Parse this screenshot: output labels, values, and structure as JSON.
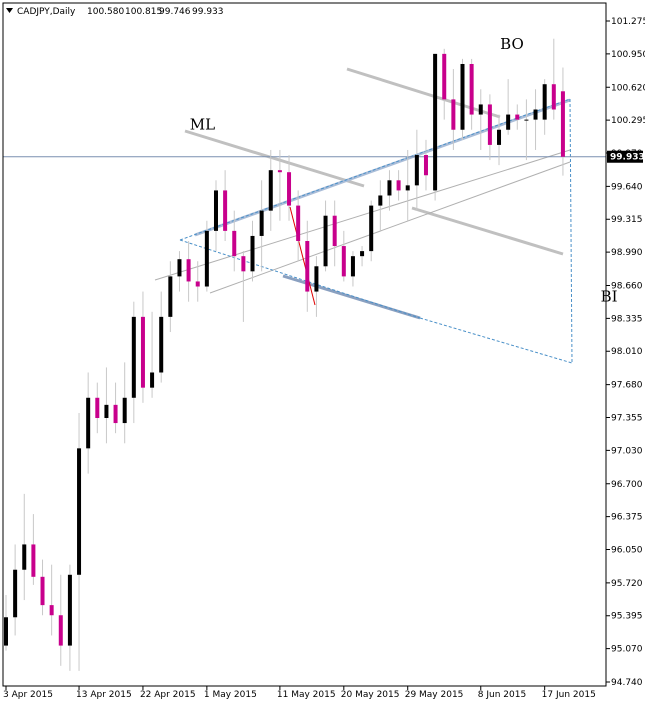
{
  "header": {
    "symbol": "CADJPY,Daily",
    "open": "100.580",
    "high": "100.815",
    "low": "99.746",
    "close": "99.933"
  },
  "chart_data": {
    "type": "candlestick",
    "symbol": "CADJPY",
    "timeframe": "Daily",
    "ylim": [
      94.7,
      101.37
    ],
    "y_ticks": [
      "101.275",
      "100.950",
      "100.620",
      "100.295",
      "99.970",
      "99.640",
      "99.315",
      "98.990",
      "98.660",
      "98.335",
      "98.010",
      "97.680",
      "97.355",
      "97.030",
      "96.700",
      "96.375",
      "96.050",
      "95.720",
      "95.395",
      "95.070",
      "94.740"
    ],
    "x_ticks": [
      {
        "label": "3 Apr 2015",
        "index": 0
      },
      {
        "label": "13 Apr 2015",
        "index": 8
      },
      {
        "label": "22 Apr 2015",
        "index": 15
      },
      {
        "label": "1 May 2015",
        "index": 22
      },
      {
        "label": "11 May 2015",
        "index": 30
      },
      {
        "label": "20 May 2015",
        "index": 37
      },
      {
        "label": "29 May 2015",
        "index": 44
      },
      {
        "label": "8 Jun 2015",
        "index": 52
      },
      {
        "label": "17 Jun 2015",
        "index": 59
      }
    ],
    "current_price": "99.933",
    "colors": {
      "bull": "#000000",
      "bear": "#c8008c",
      "wick": "#c8c8c8",
      "median_line": "#c0c0c0",
      "channel": "#b0b0b0",
      "dashed": "#4a90c8",
      "red_line": "#e00000",
      "price_line": "#6a7fa0",
      "price_label_bg": "#000000"
    },
    "candles": [
      {
        "o": 95.1,
        "h": 95.6,
        "l": 95.05,
        "c": 95.38
      },
      {
        "o": 95.38,
        "h": 96.1,
        "l": 95.2,
        "c": 95.85
      },
      {
        "o": 95.85,
        "h": 96.6,
        "l": 95.55,
        "c": 96.1
      },
      {
        "o": 96.1,
        "h": 96.4,
        "l": 95.7,
        "c": 95.78
      },
      {
        "o": 95.78,
        "h": 95.95,
        "l": 95.4,
        "c": 95.5
      },
      {
        "o": 95.5,
        "h": 95.9,
        "l": 95.2,
        "c": 95.4
      },
      {
        "o": 95.4,
        "h": 95.8,
        "l": 94.9,
        "c": 95.1
      },
      {
        "o": 95.1,
        "h": 95.9,
        "l": 94.85,
        "c": 95.8
      },
      {
        "o": 95.8,
        "h": 97.4,
        "l": 94.85,
        "c": 97.05
      },
      {
        "o": 97.05,
        "h": 97.8,
        "l": 96.8,
        "c": 97.55
      },
      {
        "o": 97.55,
        "h": 97.7,
        "l": 97.2,
        "c": 97.35
      },
      {
        "o": 97.35,
        "h": 97.85,
        "l": 97.1,
        "c": 97.48
      },
      {
        "o": 97.48,
        "h": 97.7,
        "l": 97.2,
        "c": 97.3
      },
      {
        "o": 97.3,
        "h": 97.9,
        "l": 97.1,
        "c": 97.55
      },
      {
        "o": 97.55,
        "h": 98.5,
        "l": 97.3,
        "c": 98.35
      },
      {
        "o": 98.35,
        "h": 98.6,
        "l": 97.5,
        "c": 97.65
      },
      {
        "o": 97.65,
        "h": 98.4,
        "l": 97.55,
        "c": 97.8
      },
      {
        "o": 97.8,
        "h": 98.6,
        "l": 97.7,
        "c": 98.35
      },
      {
        "o": 98.35,
        "h": 98.9,
        "l": 98.2,
        "c": 98.75
      },
      {
        "o": 98.75,
        "h": 99.0,
        "l": 98.6,
        "c": 98.92
      },
      {
        "o": 98.92,
        "h": 99.1,
        "l": 98.5,
        "c": 98.7
      },
      {
        "o": 98.7,
        "h": 98.9,
        "l": 98.5,
        "c": 98.65
      },
      {
        "o": 98.65,
        "h": 99.3,
        "l": 98.6,
        "c": 99.2
      },
      {
        "o": 99.2,
        "h": 99.7,
        "l": 99.0,
        "c": 99.6
      },
      {
        "o": 99.6,
        "h": 99.8,
        "l": 99.1,
        "c": 99.2
      },
      {
        "o": 99.2,
        "h": 99.4,
        "l": 98.8,
        "c": 98.95
      },
      {
        "o": 98.95,
        "h": 99.0,
        "l": 98.3,
        "c": 98.8
      },
      {
        "o": 98.8,
        "h": 99.3,
        "l": 98.7,
        "c": 99.15
      },
      {
        "o": 99.15,
        "h": 99.7,
        "l": 98.8,
        "c": 99.4
      },
      {
        "o": 99.4,
        "h": 100.0,
        "l": 99.2,
        "c": 99.8
      },
      {
        "o": 99.8,
        "h": 100.0,
        "l": 99.3,
        "c": 99.78
      },
      {
        "o": 99.78,
        "h": 99.95,
        "l": 99.3,
        "c": 99.45
      },
      {
        "o": 99.45,
        "h": 99.6,
        "l": 98.9,
        "c": 99.1
      },
      {
        "o": 99.1,
        "h": 99.3,
        "l": 98.4,
        "c": 98.6
      },
      {
        "o": 98.6,
        "h": 98.95,
        "l": 98.35,
        "c": 98.85
      },
      {
        "o": 98.85,
        "h": 99.5,
        "l": 98.8,
        "c": 99.35
      },
      {
        "o": 99.35,
        "h": 99.5,
        "l": 98.85,
        "c": 99.05
      },
      {
        "o": 99.05,
        "h": 99.2,
        "l": 98.7,
        "c": 98.75
      },
      {
        "o": 98.75,
        "h": 99.0,
        "l": 98.65,
        "c": 98.95
      },
      {
        "o": 98.95,
        "h": 99.05,
        "l": 98.85,
        "c": 99.0
      },
      {
        "o": 99.0,
        "h": 99.5,
        "l": 98.9,
        "c": 99.45
      },
      {
        "o": 99.45,
        "h": 99.7,
        "l": 99.2,
        "c": 99.55
      },
      {
        "o": 99.55,
        "h": 99.8,
        "l": 99.4,
        "c": 99.7
      },
      {
        "o": 99.7,
        "h": 99.8,
        "l": 99.5,
        "c": 99.6
      },
      {
        "o": 99.6,
        "h": 100.0,
        "l": 99.3,
        "c": 99.65
      },
      {
        "o": 99.65,
        "h": 100.2,
        "l": 99.4,
        "c": 99.95
      },
      {
        "o": 99.95,
        "h": 100.1,
        "l": 99.6,
        "c": 99.75
      },
      {
        "o": 99.6,
        "h": 100.95,
        "l": 99.5,
        "c": 100.95
      },
      {
        "o": 100.95,
        "h": 101.0,
        "l": 100.3,
        "c": 100.5
      },
      {
        "o": 100.5,
        "h": 100.8,
        "l": 100.0,
        "c": 100.2
      },
      {
        "o": 100.2,
        "h": 100.9,
        "l": 100.1,
        "c": 100.85
      },
      {
        "o": 100.85,
        "h": 100.9,
        "l": 100.2,
        "c": 100.35
      },
      {
        "o": 100.35,
        "h": 100.6,
        "l": 100.0,
        "c": 100.45
      },
      {
        "o": 100.45,
        "h": 100.55,
        "l": 99.9,
        "c": 100.05
      },
      {
        "o": 100.05,
        "h": 100.35,
        "l": 99.85,
        "c": 100.2
      },
      {
        "o": 100.2,
        "h": 100.7,
        "l": 100.15,
        "c": 100.35
      },
      {
        "o": 100.35,
        "h": 100.45,
        "l": 100.2,
        "c": 100.3
      },
      {
        "o": 100.3,
        "h": 100.5,
        "l": 99.9,
        "c": 100.3
      },
      {
        "o": 100.3,
        "h": 100.6,
        "l": 100.0,
        "c": 100.4
      },
      {
        "o": 100.3,
        "h": 100.7,
        "l": 100.15,
        "c": 100.65
      },
      {
        "o": 100.65,
        "h": 101.1,
        "l": 100.3,
        "c": 100.4
      },
      {
        "o": 100.58,
        "h": 100.815,
        "l": 99.746,
        "c": 99.933
      }
    ],
    "annotations": [
      {
        "text": "BO",
        "x": 55,
        "y": 101.0
      },
      {
        "text": "ML",
        "x": 21,
        "y": 100.2
      },
      {
        "text": "BI",
        "x": 66,
        "y": 98.5
      }
    ]
  }
}
